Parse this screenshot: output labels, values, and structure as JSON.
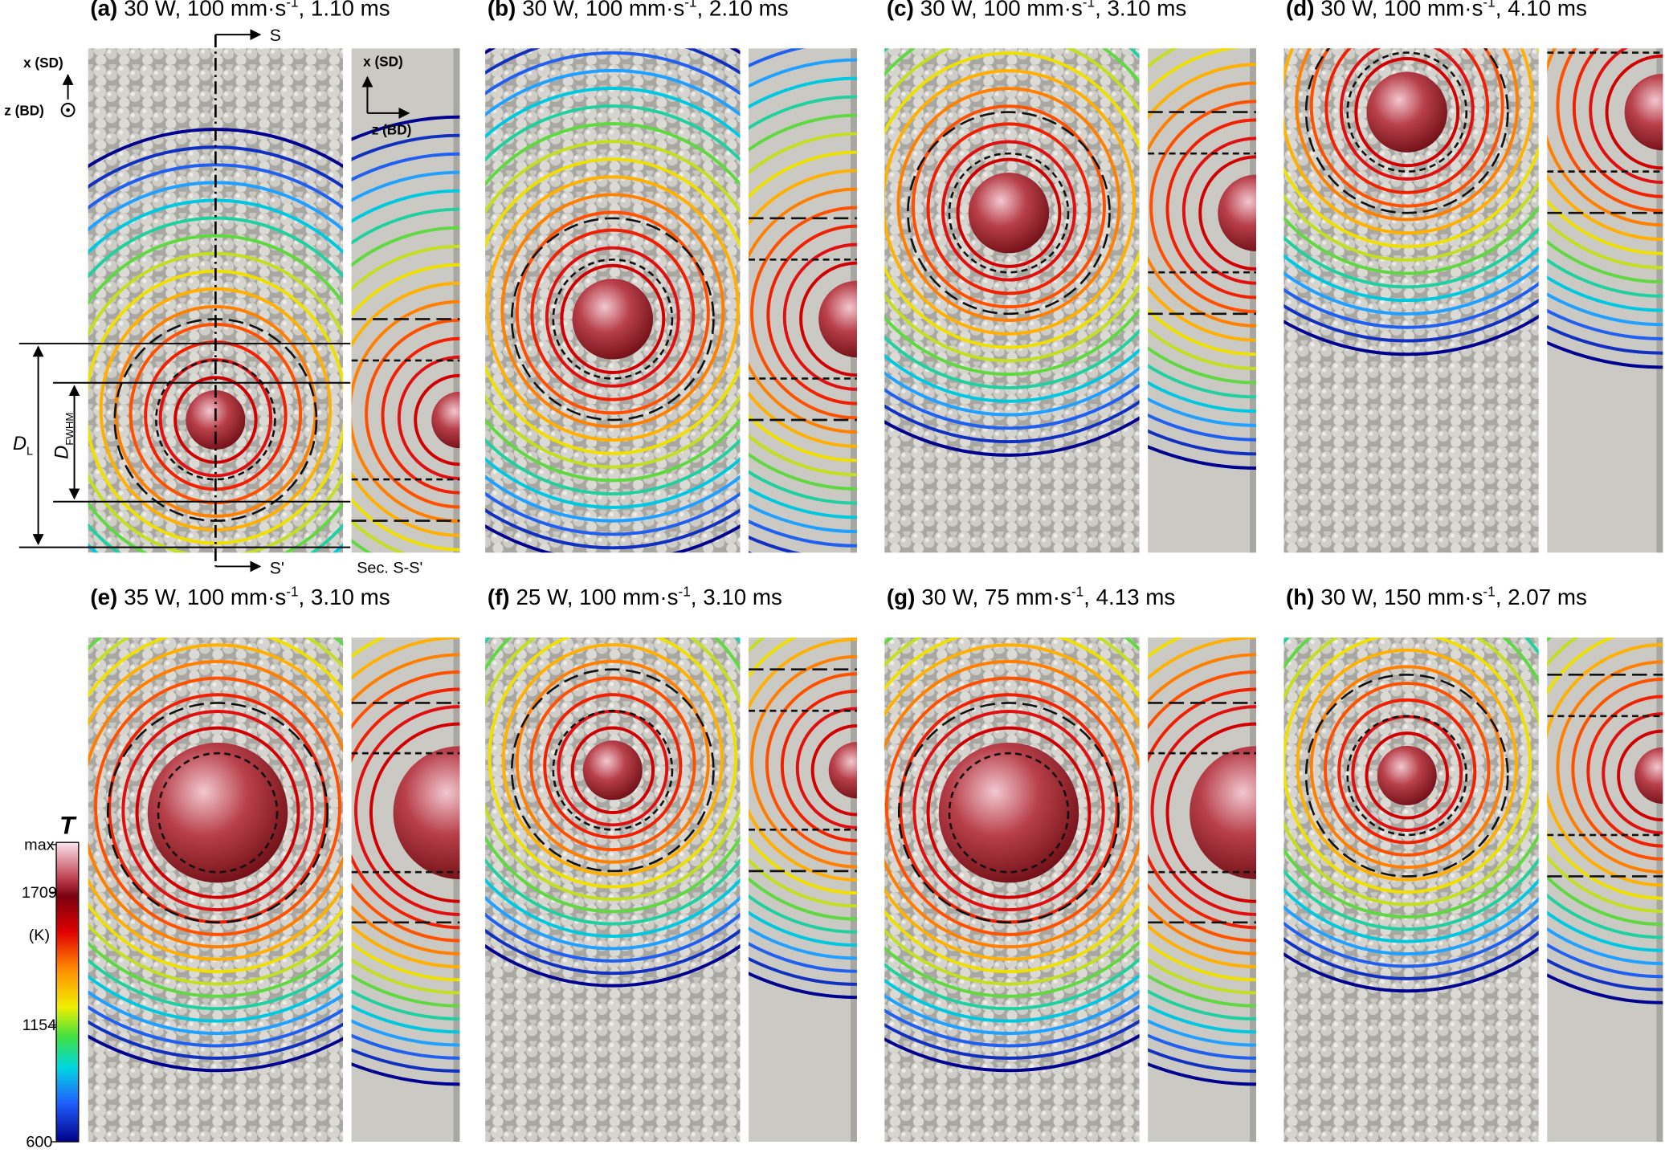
{
  "panels": [
    {
      "label": "(a)",
      "text": "30 W, 100 mm·s",
      "superscript": "-1",
      "text_end": ", 1.10 ms"
    },
    {
      "label": "(b)",
      "text": "30 W, 100 mm·s",
      "superscript": "-1",
      "text_end": ", 2.10 ms"
    },
    {
      "label": "(c)",
      "text": "30 W, 100 mm·s",
      "superscript": "-1",
      "text_end": ", 3.10 ms"
    },
    {
      "label": "(d)",
      "text": "30 W, 100 mm·s",
      "superscript": "-1",
      "text_end": ", 4.10 ms"
    },
    {
      "label": "(e)",
      "text": "35 W, 100 mm·s",
      "superscript": "-1",
      "text_end": ", 3.10 ms"
    },
    {
      "label": "(f)",
      "text": "25 W, 100 mm·s",
      "superscript": "-1",
      "text_end": ", 3.10 ms"
    },
    {
      "label": "(g)",
      "text": "30 W, 75 mm·s",
      "superscript": "-1",
      "text_end": ", 4.13 ms"
    },
    {
      "label": "(h)",
      "text": "30 W, 150 mm·s",
      "superscript": "-1",
      "text_end": ", 2.07 ms"
    }
  ],
  "annotations": {
    "x_axis": "x (SD)",
    "z_axis": "z (BD)",
    "section_start": "S",
    "section_end": "S'",
    "section_label": "Sec. S-S'",
    "d_l": "D",
    "d_l_sub": "L",
    "d_fwhm": "D",
    "d_fwhm_sub": "FWHM",
    "side_x_axis": "x (SD)",
    "side_z_axis": "z (BD)"
  },
  "colorbar": {
    "title": "T",
    "labels": [
      "max",
      "1709",
      "(K)",
      "1154",
      "600"
    ]
  }
}
